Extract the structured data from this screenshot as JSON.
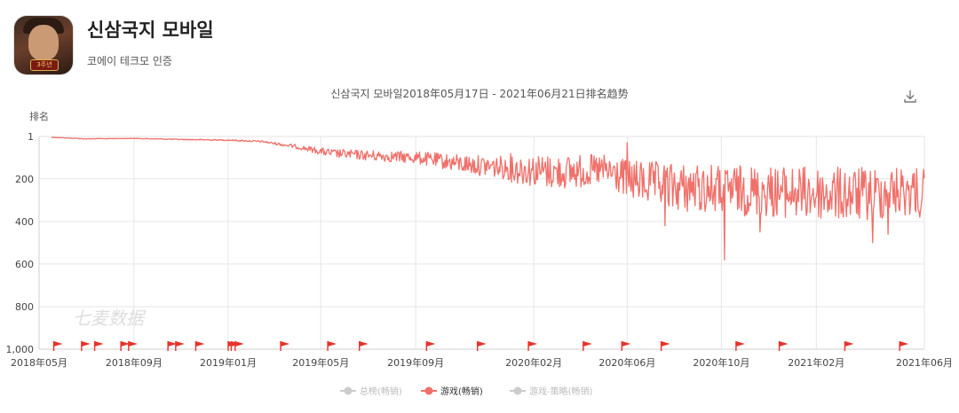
{
  "app": {
    "name": "신삼국지 모바일",
    "publisher": "코에이 테크모 인증",
    "icon_badge": "3주년"
  },
  "chart_title": "신삼국지 모바일2018年05月17日 - 2021年06月21日排名趋势",
  "watermark": "七麦数据",
  "icons": {
    "download": "download-icon"
  },
  "colors": {
    "series": "#f0706a",
    "grid": "#e6e6e6",
    "flag": "#e8322a",
    "inactive": "#cccccc"
  },
  "chart_data": {
    "type": "line",
    "ylabel": "排名",
    "y_inverted": true,
    "ylim": [
      1,
      1000
    ],
    "yticks": [
      "1",
      "200",
      "400",
      "600",
      "800",
      "1,000"
    ],
    "xticks": [
      "2018年05月",
      "2018年09月",
      "2019年01月",
      "2019年05月",
      "2019年09月",
      "2020年02月",
      "2020年06月",
      "2020年10月",
      "2021年02月",
      "2021年06月"
    ],
    "legend": [
      {
        "name": "总榜(畅销)",
        "active": false
      },
      {
        "name": "游戏(畅销)",
        "active": true
      },
      {
        "name": "游戏-策略(畅销)",
        "active": false
      }
    ],
    "legend_position": "bottom",
    "series": [
      {
        "name": "游戏(畅销)",
        "keypoints": [
          [
            "2018-05-17",
            5
          ],
          [
            "2018-07-01",
            12
          ],
          [
            "2018-09-01",
            10
          ],
          [
            "2018-11-01",
            15
          ],
          [
            "2019-01-01",
            18
          ],
          [
            "2019-02-15",
            25
          ],
          [
            "2019-04-01",
            50
          ],
          [
            "2019-05-15",
            80
          ],
          [
            "2019-07-01",
            90
          ],
          [
            "2019-09-01",
            100
          ],
          [
            "2019-11-01",
            130
          ],
          [
            "2020-01-01",
            150
          ],
          [
            "2020-03-01",
            170
          ],
          [
            "2020-05-01",
            160
          ],
          [
            "2020-06-10",
            210
          ],
          [
            "2020-08-01",
            240
          ],
          [
            "2020-10-01",
            250
          ],
          [
            "2020-12-01",
            260
          ],
          [
            "2021-02-01",
            270
          ],
          [
            "2021-04-01",
            275
          ],
          [
            "2021-06-21",
            250
          ]
        ],
        "extremes": [
          [
            "2020-06-01",
            30
          ],
          [
            "2020-07-20",
            420
          ],
          [
            "2020-10-05",
            580
          ],
          [
            "2020-11-20",
            450
          ],
          [
            "2021-04-15",
            500
          ],
          [
            "2021-05-05",
            460
          ],
          [
            "2021-06-15",
            380
          ]
        ]
      }
    ],
    "flag_dates": [
      "2018-05-20",
      "2018-06-25",
      "2018-07-12",
      "2018-08-15",
      "2018-08-25",
      "2018-10-15",
      "2018-10-25",
      "2018-11-20",
      "2019-01-01",
      "2019-01-05",
      "2019-01-10",
      "2019-03-10",
      "2019-05-10",
      "2019-06-20",
      "2019-09-15",
      "2019-11-20",
      "2020-01-25",
      "2020-04-05",
      "2020-05-25",
      "2020-07-15",
      "2020-10-20",
      "2020-12-15",
      "2021-03-10",
      "2021-05-20"
    ]
  }
}
